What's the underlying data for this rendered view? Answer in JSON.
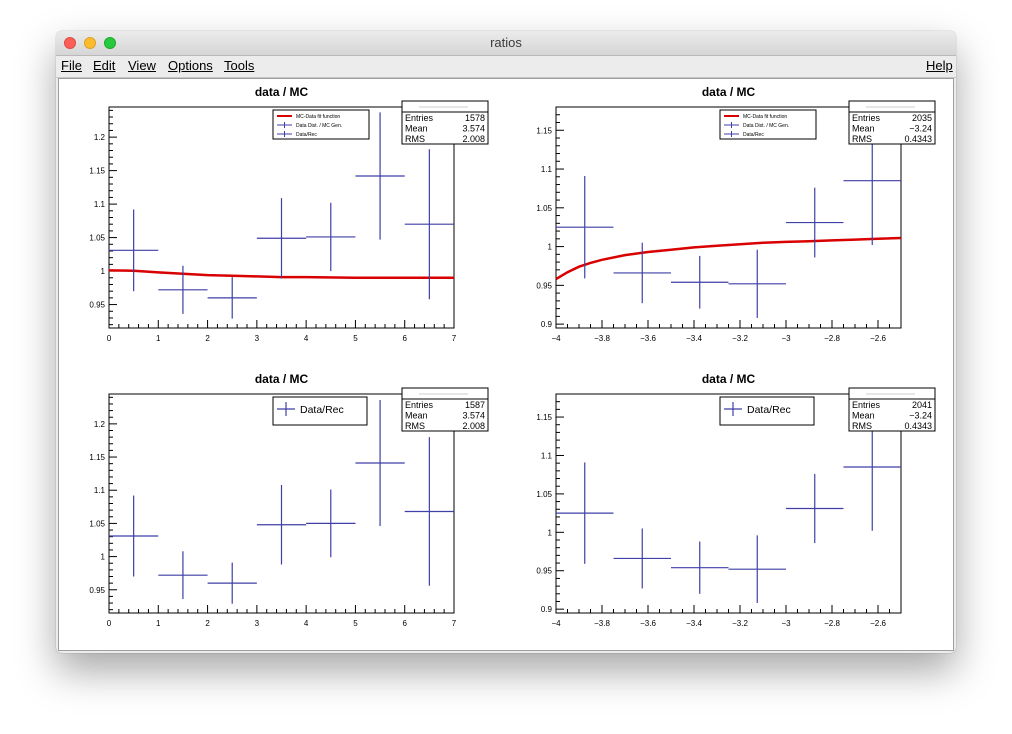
{
  "window": {
    "title": "ratios"
  },
  "menu": {
    "file": "File",
    "edit": "Edit",
    "view": "View",
    "options": "Options",
    "tools": "Tools",
    "help": "Help"
  },
  "colors": {
    "fit": "#d90000",
    "points": "#3f3fa8",
    "axis": "#000000"
  },
  "chart_data": [
    {
      "type": "scatter",
      "title": "data / MC",
      "xlim": [
        0,
        7
      ],
      "ylim": [
        0.915,
        1.245
      ],
      "xticks": [
        "0",
        "1",
        "2",
        "3",
        "4",
        "5",
        "6",
        "7"
      ],
      "yticks": [
        "0.95",
        "1",
        "1.05",
        "1.1",
        "1.15",
        "1.2"
      ],
      "ytick_values": [
        0.95,
        1,
        1.05,
        1.1,
        1.15,
        1.2
      ],
      "legend": [
        "MC-Data fit function",
        "Data Dist. / MC Gen.",
        "Data/Rec"
      ],
      "legend_size": "small",
      "stats": {
        "entries_label": "Entries",
        "entries": "1578",
        "mean_label": "Mean",
        "mean": "3.574",
        "rms_label": "RMS",
        "rms": "2.008"
      },
      "series": [
        {
          "x": [
            0.5,
            1.5,
            2.5,
            3.5,
            4.5,
            5.5,
            6.5
          ],
          "y": [
            1.031,
            0.972,
            0.96,
            1.049,
            1.051,
            1.142,
            1.07
          ],
          "xerr": 0.5,
          "yerr": [
            0.061,
            0.036,
            0.031,
            0.06,
            0.051,
            0.095,
            0.112
          ]
        }
      ],
      "fit": {
        "x": [
          0,
          0.5,
          1,
          1.5,
          2,
          2.5,
          3,
          3.5,
          4,
          5,
          6,
          7
        ],
        "y": [
          1.001,
          1.0005,
          0.998,
          0.996,
          0.994,
          0.993,
          0.992,
          0.991,
          0.991,
          0.99,
          0.99,
          0.99
        ]
      }
    },
    {
      "type": "scatter",
      "title": "data / MC",
      "xlim": [
        -4,
        -2.5
      ],
      "ylim": [
        0.895,
        1.18
      ],
      "xticks": [
        "−4",
        "−3.8",
        "−3.6",
        "−3.4",
        "−3.2",
        "−3",
        "−2.8",
        "−2.6"
      ],
      "xtick_values": [
        -4,
        -3.8,
        -3.6,
        -3.4,
        -3.2,
        -3,
        -2.8,
        -2.6
      ],
      "yticks": [
        "0.9",
        "0.95",
        "1",
        "1.05",
        "1.1",
        "1.15"
      ],
      "ytick_values": [
        0.9,
        0.95,
        1,
        1.05,
        1.1,
        1.15
      ],
      "legend": [
        "MC-Data fit function",
        "Data Dist. / MC Gen.",
        "Data/Rec"
      ],
      "legend_size": "small",
      "stats": {
        "entries_label": "Entries",
        "entries": "2035",
        "mean_label": "Mean",
        "mean": "−3.24",
        "rms_label": "RMS",
        "rms": "0.4343"
      },
      "series": [
        {
          "x": [
            -3.875,
            -3.625,
            -3.375,
            -3.125,
            -2.875,
            -2.625
          ],
          "y": [
            1.025,
            0.966,
            0.954,
            0.952,
            1.031,
            1.085
          ],
          "xerr": 0.125,
          "yerr": [
            0.066,
            0.039,
            0.034,
            0.044,
            0.045,
            0.083
          ]
        }
      ],
      "fit": {
        "x": [
          -4,
          -3.95,
          -3.9,
          -3.85,
          -3.8,
          -3.7,
          -3.6,
          -3.5,
          -3.4,
          -3.3,
          -3.2,
          -3.1,
          -3.0,
          -2.9,
          -2.8,
          -2.7,
          -2.6,
          -2.5
        ],
        "y": [
          0.958,
          0.967,
          0.974,
          0.979,
          0.983,
          0.989,
          0.993,
          0.996,
          0.999,
          1.001,
          1.003,
          1.005,
          1.006,
          1.007,
          1.008,
          1.009,
          1.01,
          1.011
        ]
      }
    },
    {
      "type": "scatter",
      "title": "data / MC",
      "xlim": [
        0,
        7
      ],
      "ylim": [
        0.915,
        1.245
      ],
      "xticks": [
        "0",
        "1",
        "2",
        "3",
        "4",
        "5",
        "6",
        "7"
      ],
      "yticks": [
        "0.95",
        "1",
        "1.05",
        "1.1",
        "1.15",
        "1.2"
      ],
      "ytick_values": [
        0.95,
        1,
        1.05,
        1.1,
        1.15,
        1.2
      ],
      "legend": [
        "Data/Rec"
      ],
      "legend_size": "large",
      "stats": {
        "entries_label": "Entries",
        "entries": "1587",
        "mean_label": "Mean",
        "mean": "3.574",
        "rms_label": "RMS",
        "rms": "2.008"
      },
      "series": [
        {
          "x": [
            0.5,
            1.5,
            2.5,
            3.5,
            4.5,
            5.5,
            6.5
          ],
          "y": [
            1.031,
            0.972,
            0.96,
            1.048,
            1.05,
            1.141,
            1.068
          ],
          "xerr": 0.5,
          "yerr": [
            0.061,
            0.036,
            0.031,
            0.06,
            0.051,
            0.095,
            0.112
          ]
        }
      ]
    },
    {
      "type": "scatter",
      "title": "data / MC",
      "xlim": [
        -4,
        -2.5
      ],
      "ylim": [
        0.895,
        1.18
      ],
      "xticks": [
        "−4",
        "−3.8",
        "−3.6",
        "−3.4",
        "−3.2",
        "−3",
        "−2.8",
        "−2.6"
      ],
      "xtick_values": [
        -4,
        -3.8,
        -3.6,
        -3.4,
        -3.2,
        -3,
        -2.8,
        -2.6
      ],
      "yticks": [
        "0.9",
        "0.95",
        "1",
        "1.05",
        "1.1",
        "1.15"
      ],
      "ytick_values": [
        0.9,
        0.95,
        1,
        1.05,
        1.1,
        1.15
      ],
      "legend": [
        "Data/Rec"
      ],
      "legend_size": "large",
      "stats": {
        "entries_label": "Entries",
        "entries": "2041",
        "mean_label": "Mean",
        "mean": "−3.24",
        "rms_label": "RMS",
        "rms": "0.4343"
      },
      "series": [
        {
          "x": [
            -3.875,
            -3.625,
            -3.375,
            -3.125,
            -2.875,
            -2.625
          ],
          "y": [
            1.025,
            0.966,
            0.954,
            0.952,
            1.031,
            1.085
          ],
          "xerr": 0.125,
          "yerr": [
            0.066,
            0.039,
            0.034,
            0.044,
            0.045,
            0.083
          ]
        }
      ]
    }
  ]
}
